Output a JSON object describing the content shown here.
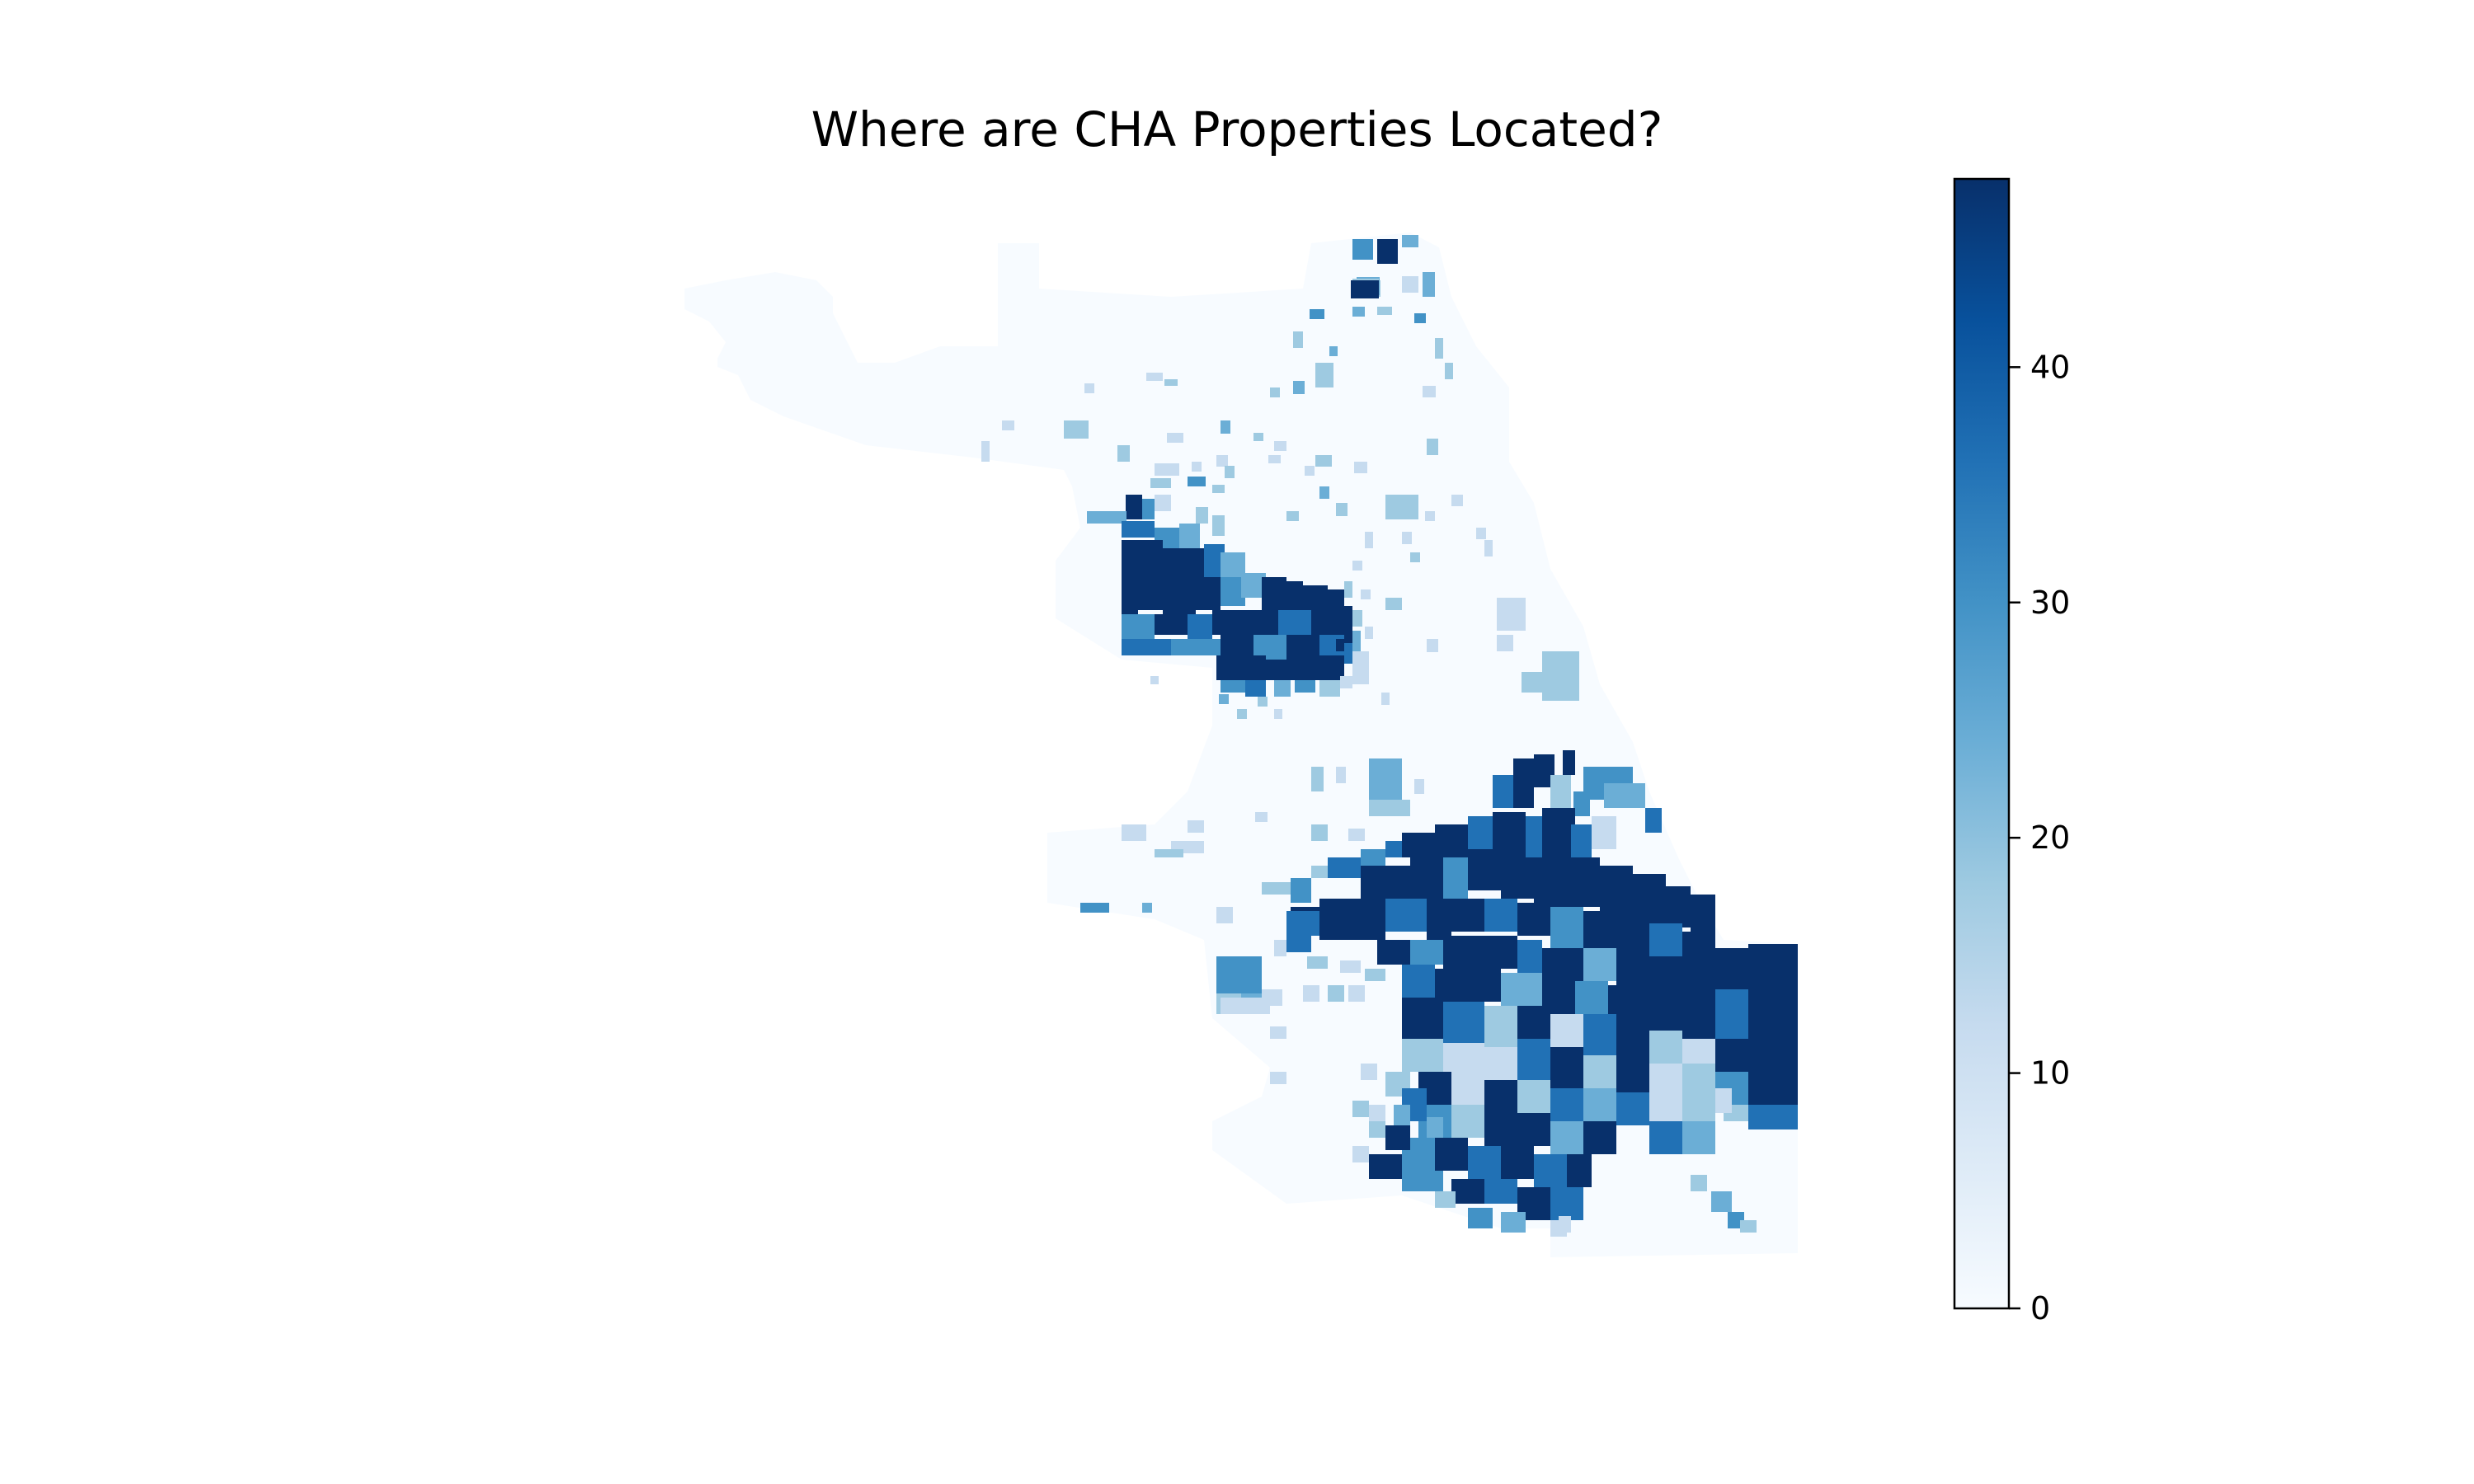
{
  "title": "Where are CHA Properties Located?",
  "colorbar": {
    "min": 0,
    "max": 48,
    "ticks": [
      {
        "value": 0,
        "label": "0"
      },
      {
        "value": 10,
        "label": "10"
      },
      {
        "value": 20,
        "label": "20"
      },
      {
        "value": 30,
        "label": "30"
      },
      {
        "value": 40,
        "label": "40"
      }
    ],
    "colormap": [
      "#f7fbff",
      "#deebf7",
      "#c6dbef",
      "#9ecae1",
      "#6baed6",
      "#4292c6",
      "#2171b5",
      "#08519c",
      "#08306b"
    ]
  }
}
